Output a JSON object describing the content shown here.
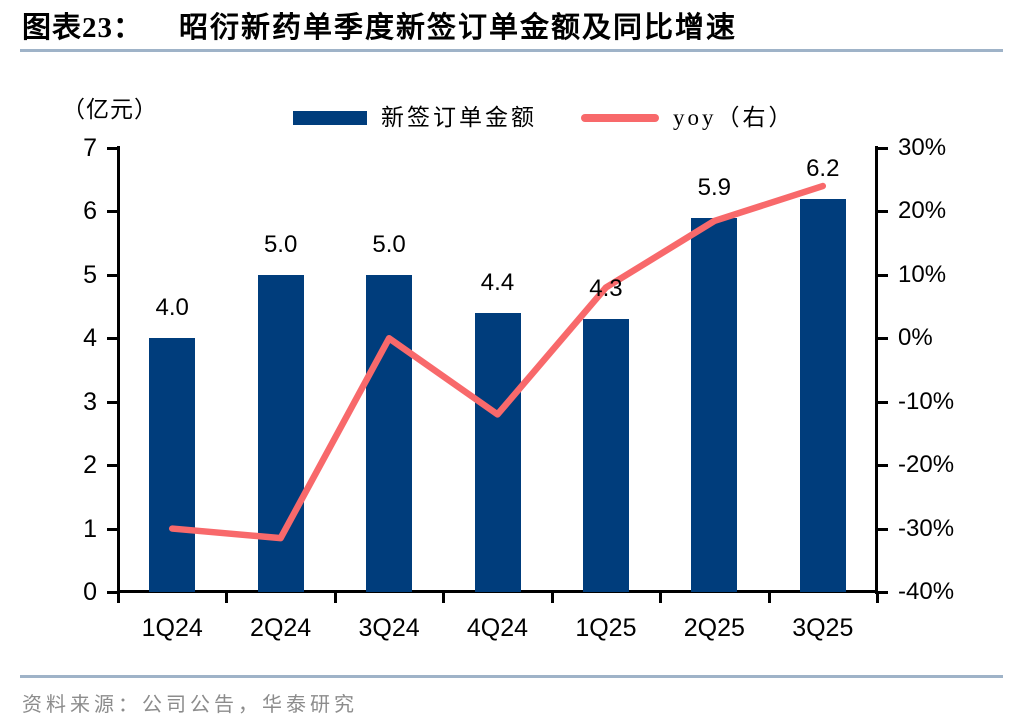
{
  "figure": {
    "label": "图表23：",
    "title": "昭衍新药单季度新签订单金额及同比增速"
  },
  "unit_label": "（亿元）",
  "legend": {
    "items": [
      {
        "label": "新签订单金额",
        "marker": "bar",
        "color": "#003D7C"
      },
      {
        "label": "yoy（右）",
        "marker": "line",
        "color": "#F8696B"
      }
    ]
  },
  "chart_data": {
    "type": "bar",
    "subtype": "bar-line-combo",
    "title": "昭衍新药单季度新签订单金额及同比增速",
    "categories": [
      "1Q24",
      "2Q24",
      "3Q24",
      "4Q24",
      "1Q25",
      "2Q25",
      "3Q25"
    ],
    "series": [
      {
        "name": "新签订单金额",
        "type": "bar",
        "yaxis": "left",
        "unit": "亿元",
        "values": [
          4.0,
          5.0,
          5.0,
          4.4,
          4.3,
          5.9,
          6.2
        ],
        "labels": [
          "4.0",
          "5.0",
          "5.0",
          "4.4",
          "4.3",
          "5.9",
          "6.2"
        ],
        "color": "#003D7C"
      },
      {
        "name": "yoy（右）",
        "type": "line",
        "yaxis": "right",
        "unit": "%",
        "values": [
          -30,
          -31.5,
          0,
          -12,
          8,
          18.5,
          24
        ],
        "color": "#F8696B"
      }
    ],
    "left_axis": {
      "min": 0,
      "max": 7,
      "tick_values": [
        7,
        6,
        5,
        4,
        3,
        2,
        1,
        0
      ],
      "tick_labels": [
        "7",
        "6",
        "5",
        "4",
        "3",
        "2",
        "1",
        "0"
      ]
    },
    "right_axis": {
      "min": -40,
      "max": 30,
      "tick_values": [
        30,
        20,
        10,
        0,
        -10,
        -20,
        -30,
        -40
      ],
      "tick_labels": [
        "30%",
        "20%",
        "10%",
        "0%",
        "-10%",
        "-20%",
        "-30%",
        "-40%"
      ]
    },
    "grid": false,
    "legend_position": "top"
  },
  "source": "资料来源：公司公告，华泰研究",
  "colors": {
    "bar": "#003D7C",
    "line": "#F8696B",
    "rule": "#9FB3C8",
    "source_text": "#8C8C8C",
    "axis": "#000000"
  }
}
